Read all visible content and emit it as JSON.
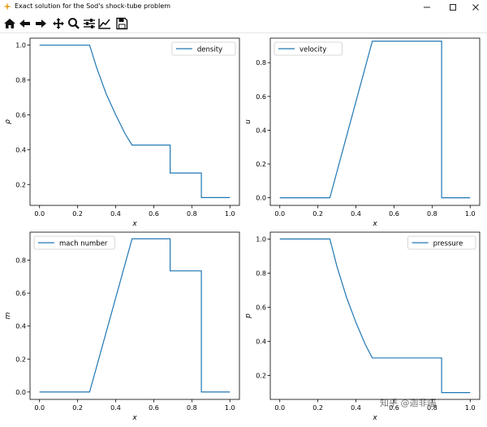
{
  "window": {
    "title": "Exact solution for the Sod's shock-tube problem",
    "controls": [
      "minimize-icon",
      "maximize-icon",
      "close-icon"
    ]
  },
  "toolbar": {
    "buttons": [
      "home-icon",
      "back-icon",
      "forward-icon",
      "pan-icon",
      "zoom-icon",
      "configure-subplots-icon",
      "edit-axis-icon",
      "save-icon"
    ]
  },
  "colors": {
    "line": "#1f77b4"
  },
  "watermark": "知乎 @迦非喵",
  "chart_data": [
    {
      "type": "line",
      "xlabel": "x",
      "ylabel": "ρ",
      "legend": "density",
      "legend_position": "upper right",
      "xlim": [
        -0.05,
        1.05
      ],
      "ylim": [
        0.08,
        1.04
      ],
      "xticks": [
        "0.0",
        "0.2",
        "0.4",
        "0.6",
        "0.8",
        "1.0"
      ],
      "yticks": [
        "0.2",
        "0.4",
        "0.6",
        "0.8",
        "1.0"
      ],
      "series": [
        {
          "x": [
            0.0,
            0.263,
            0.3,
            0.35,
            0.4,
            0.45,
            0.486,
            0.686,
            0.686,
            0.85,
            0.85,
            1.0
          ],
          "y": [
            1.0,
            1.0,
            0.87,
            0.72,
            0.6,
            0.49,
            0.426,
            0.426,
            0.266,
            0.266,
            0.125,
            0.125
          ]
        }
      ]
    },
    {
      "type": "line",
      "xlabel": "x",
      "ylabel": "u",
      "legend": "velocity",
      "legend_position": "upper left",
      "xlim": [
        -0.05,
        1.05
      ],
      "ylim": [
        -0.045,
        0.945
      ],
      "xticks": [
        "0.0",
        "0.2",
        "0.4",
        "0.6",
        "0.8",
        "1.0"
      ],
      "yticks": [
        "0.0",
        "0.2",
        "0.4",
        "0.6",
        "0.8"
      ],
      "series": [
        {
          "x": [
            0.0,
            0.263,
            0.486,
            0.85,
            0.85,
            1.0
          ],
          "y": [
            0.0,
            0.0,
            0.927,
            0.927,
            0.0,
            0.0
          ]
        }
      ]
    },
    {
      "type": "line",
      "xlabel": "x",
      "ylabel": "m",
      "legend": "mach number",
      "legend_position": "upper left",
      "xlim": [
        -0.05,
        1.05
      ],
      "ylim": [
        -0.045,
        0.97
      ],
      "xticks": [
        "0.0",
        "0.2",
        "0.4",
        "0.6",
        "0.8",
        "1.0"
      ],
      "yticks": [
        "0.0",
        "0.2",
        "0.4",
        "0.6",
        "0.8"
      ],
      "series": [
        {
          "x": [
            0.0,
            0.263,
            0.486,
            0.686,
            0.686,
            0.85,
            0.85,
            1.0
          ],
          "y": [
            0.0,
            0.0,
            0.93,
            0.93,
            0.735,
            0.735,
            0.0,
            0.0
          ]
        }
      ]
    },
    {
      "type": "line",
      "xlabel": "x",
      "ylabel": "p",
      "legend": "pressure",
      "legend_position": "upper right",
      "xlim": [
        -0.05,
        1.05
      ],
      "ylim": [
        0.06,
        1.04
      ],
      "xticks": [
        "0.0",
        "0.2",
        "0.4",
        "0.6",
        "0.8",
        "1.0"
      ],
      "yticks": [
        "0.2",
        "0.4",
        "0.6",
        "0.8",
        "1.0"
      ],
      "series": [
        {
          "x": [
            0.0,
            0.263,
            0.3,
            0.35,
            0.4,
            0.45,
            0.486,
            0.85,
            0.85,
            1.0
          ],
          "y": [
            1.0,
            1.0,
            0.84,
            0.66,
            0.51,
            0.38,
            0.303,
            0.303,
            0.1,
            0.1
          ]
        }
      ]
    }
  ]
}
